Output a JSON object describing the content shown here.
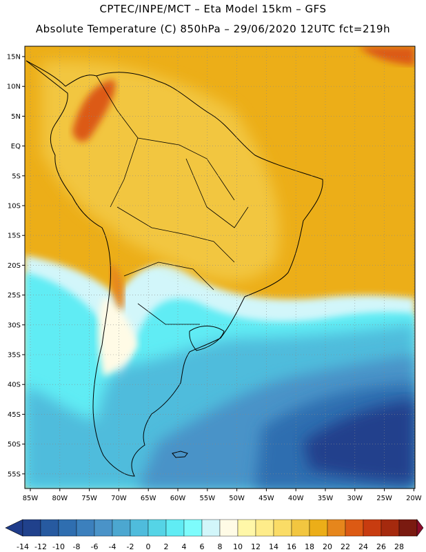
{
  "header": {
    "line1": "CPTEC/INPE/MCT –  Eta Model 15km – GFS",
    "line2": "Absolute Temperature (C) 850hPa – 29/06/2020 12UTC fct=219h"
  },
  "axes": {
    "lat_labels": [
      "15N",
      "10N",
      "5N",
      "EQ",
      "5S",
      "10S",
      "15S",
      "20S",
      "25S",
      "30S",
      "35S",
      "40S",
      "45S",
      "50S",
      "55S"
    ],
    "lon_labels": [
      "85W",
      "80W",
      "75W",
      "70W",
      "65W",
      "60W",
      "55W",
      "50W",
      "45W",
      "40W",
      "35W",
      "30W",
      "25W",
      "20W"
    ]
  },
  "colorbar": {
    "labels": [
      "-14",
      "-12",
      "-10",
      "-8",
      "-6",
      "-4",
      "-2",
      "0",
      "2",
      "4",
      "6",
      "8",
      "10",
      "12",
      "14",
      "16",
      "18",
      "20",
      "22",
      "24",
      "26",
      "28"
    ],
    "colors": [
      "#20418c",
      "#275aa0",
      "#2f6eb0",
      "#3c80bd",
      "#4a93c8",
      "#4ca7d0",
      "#4fbcdc",
      "#55d4e6",
      "#60ecf4",
      "#7dfcfc",
      "#d2f6fa",
      "#fffbe6",
      "#fff7a8",
      "#feec8a",
      "#fadc66",
      "#f2c640",
      "#ecae18",
      "#e6861c",
      "#dc5a14",
      "#c83c10",
      "#a52a0e",
      "#7a1a10"
    ],
    "under_color": "#1f3c8a",
    "over_color": "#8c0c2a"
  },
  "map": {
    "field_colors": {
      "deep_cold": "#20418c",
      "cold": "#2f6eb0",
      "cool": "#4a93c8",
      "mild": "#4fbcdc",
      "cyan": "#60ecf4",
      "pale": "#d2f6fa",
      "cream": "#fffbe6",
      "yellow": "#fadc66",
      "orange": "#f2c640",
      "warm": "#ecae18",
      "hot": "#e6861c",
      "hotter": "#dc5a14"
    }
  }
}
